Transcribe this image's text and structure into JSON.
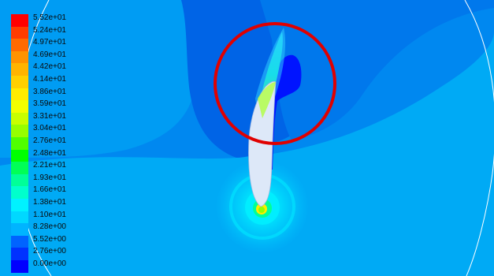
{
  "legend": {
    "levels": [
      {
        "label": "5.52e+01",
        "color": "#ff0000"
      },
      {
        "label": "5.24e+01",
        "color": "#ff3c00"
      },
      {
        "label": "4.97e+01",
        "color": "#ff6a00"
      },
      {
        "label": "4.69e+01",
        "color": "#ff9300"
      },
      {
        "label": "4.42e+01",
        "color": "#ffb400"
      },
      {
        "label": "4.14e+01",
        "color": "#ffd000"
      },
      {
        "label": "3.86e+01",
        "color": "#ffec00"
      },
      {
        "label": "3.59e+01",
        "color": "#f2ff00"
      },
      {
        "label": "3.31e+01",
        "color": "#c8ff00"
      },
      {
        "label": "3.04e+01",
        "color": "#96ff00"
      },
      {
        "label": "2.76e+01",
        "color": "#50ff00"
      },
      {
        "label": "2.48e+01",
        "color": "#00ff00"
      },
      {
        "label": "2.21e+01",
        "color": "#00ff56"
      },
      {
        "label": "1.93e+01",
        "color": "#00ff98"
      },
      {
        "label": "1.66e+01",
        "color": "#00ffcc"
      },
      {
        "label": "1.38e+01",
        "color": "#00f2ff"
      },
      {
        "label": "1.10e+01",
        "color": "#00d8ff"
      },
      {
        "label": "8.28e+00",
        "color": "#00b4ff"
      },
      {
        "label": "5.52e+00",
        "color": "#0064ff"
      },
      {
        "label": "2.76e+00",
        "color": "#0032ff"
      },
      {
        "label": "0.00e+00",
        "color": "#0000ff"
      }
    ]
  },
  "plot": {
    "background_color": "#0088f0",
    "far_field_color": "#00aaf5",
    "low_region_color": "#0064e6",
    "vortex_core_color": "#0014ff",
    "airfoil_color": "#dde8f8",
    "highlight_circle_color": "#e00000"
  }
}
